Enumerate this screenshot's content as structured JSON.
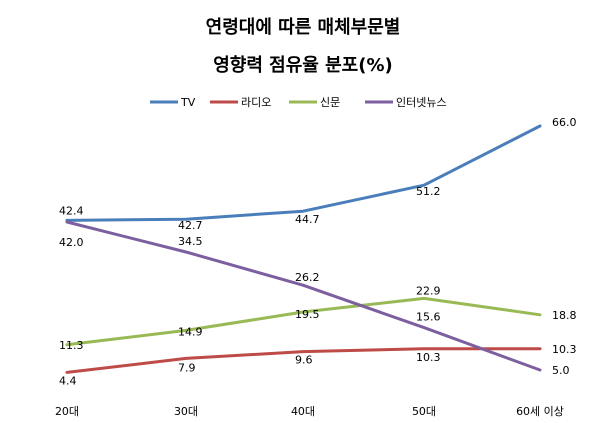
{
  "chart_data": {
    "type": "line",
    "title": "연령대에 따른 매체부문별",
    "subtitle": "영향력 점유율 분포(%)",
    "xlabel": "",
    "ylabel": "",
    "categories": [
      "20대",
      "30대",
      "40대",
      "50대",
      "60세 이상"
    ],
    "ylim": [
      0,
      70
    ],
    "grid": false,
    "legend_position": "top",
    "series": [
      {
        "name": "TV",
        "color": "#4a7ebb",
        "values": [
          42.4,
          42.7,
          44.7,
          51.2,
          66.0
        ]
      },
      {
        "name": "라디오",
        "color": "#be4b48",
        "values": [
          4.4,
          7.9,
          9.6,
          10.3,
          10.3
        ]
      },
      {
        "name": "신문",
        "color": "#98b954",
        "values": [
          11.3,
          14.9,
          19.5,
          22.9,
          18.8
        ]
      },
      {
        "name": "인터넷뉴스",
        "color": "#7d5fa0",
        "values": [
          42.0,
          34.5,
          26.2,
          15.6,
          5.0
        ]
      }
    ]
  }
}
